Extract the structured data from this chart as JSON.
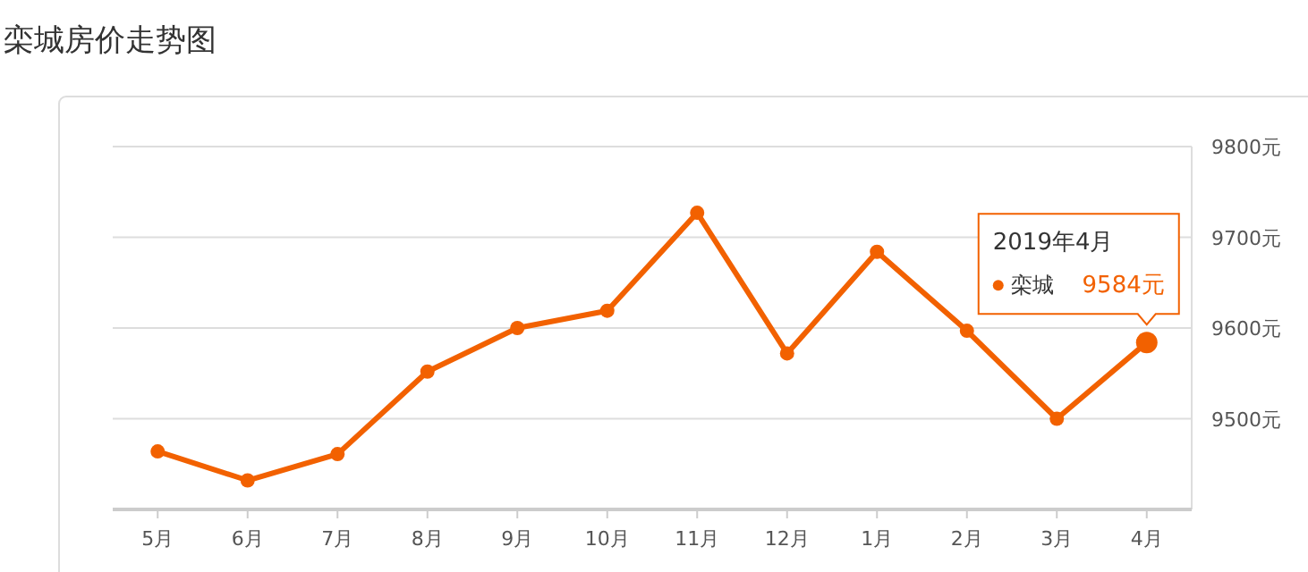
{
  "chart_data": {
    "type": "line",
    "title": "栾城房价走势图",
    "categories": [
      "5月",
      "6月",
      "7月",
      "8月",
      "9月",
      "10月",
      "11月",
      "12月",
      "1月",
      "2月",
      "3月",
      "4月"
    ],
    "series": [
      {
        "name": "栾城",
        "color": "#f26100",
        "values": [
          9464,
          9432,
          9461,
          9552,
          9600,
          9619,
          9727,
          9572,
          9684,
          9597,
          9500,
          9584
        ],
        "value_labels": [
          null,
          null,
          null,
          null,
          null,
          null,
          null,
          null,
          null,
          null,
          null,
          "9584元"
        ]
      }
    ],
    "ylim": [
      9400,
      9800
    ],
    "yticks": [
      {
        "value": 9500,
        "label": "9500元"
      },
      {
        "value": 9600,
        "label": "9600元"
      },
      {
        "value": 9700,
        "label": "9700元"
      },
      {
        "value": 9800,
        "label": "9800元"
      }
    ],
    "grid": "y",
    "marker": "circle",
    "annotations": [
      "2019年4月"
    ]
  }
}
